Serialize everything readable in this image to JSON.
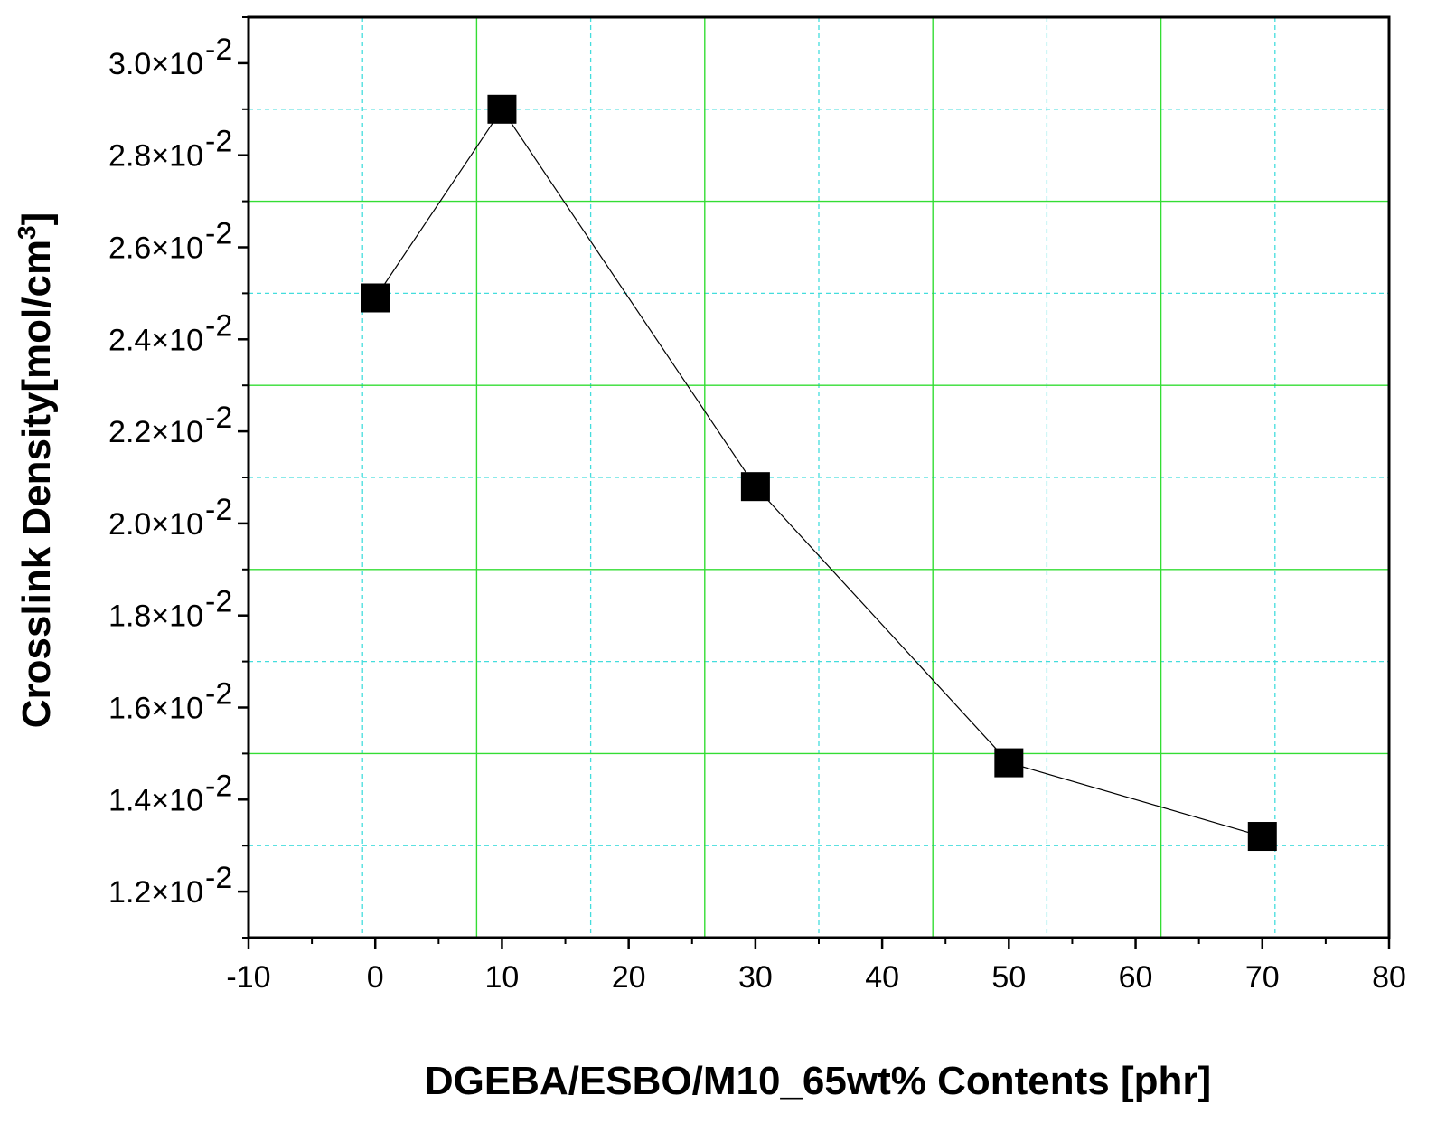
{
  "chart_data": {
    "type": "line",
    "title": "",
    "xlabel": "DGEBA/ESBO/M10_65wt% Contents [phr]",
    "ylabel": "Crosslink Density[mol/cm",
    "ylabel_superscript": "3",
    "ylabel_close": "]",
    "xlim": [
      -10,
      80
    ],
    "ylim": [
      0.011,
      0.031
    ],
    "x_ticks": [
      -10,
      0,
      10,
      20,
      30,
      40,
      50,
      60,
      70,
      80
    ],
    "x_tick_labels": [
      "-10",
      "0",
      "10",
      "20",
      "30",
      "40",
      "50",
      "60",
      "70",
      "80"
    ],
    "y_ticks": [
      0.012,
      0.014,
      0.016,
      0.018,
      0.02,
      0.022,
      0.024,
      0.026,
      0.028,
      0.03
    ],
    "y_tick_mantissas": [
      "1.2×10",
      "1.4×10",
      "1.6×10",
      "1.8×10",
      "2.0×10",
      "2.2×10",
      "2.4×10",
      "2.6×10",
      "2.8×10",
      "3.0×10"
    ],
    "y_tick_exponent": "-2",
    "x_grid_major": [
      8,
      26,
      44,
      62
    ],
    "x_grid_minor": [
      -1,
      17,
      35,
      53,
      71
    ],
    "y_grid_major": [
      0.015,
      0.019,
      0.023,
      0.027
    ],
    "y_grid_minor": [
      0.013,
      0.017,
      0.021,
      0.025,
      0.029
    ],
    "grid": true,
    "legend": "none",
    "series": [
      {
        "x": [
          0,
          10,
          30,
          50,
          70
        ],
        "values": [
          0.0249,
          0.029,
          0.0208,
          0.0148,
          0.0132
        ],
        "marker": "square",
        "color": "#000000"
      }
    ],
    "colors": {
      "major_grid": "#33dd33",
      "minor_grid": "#44dddd",
      "axis": "#000000"
    }
  }
}
